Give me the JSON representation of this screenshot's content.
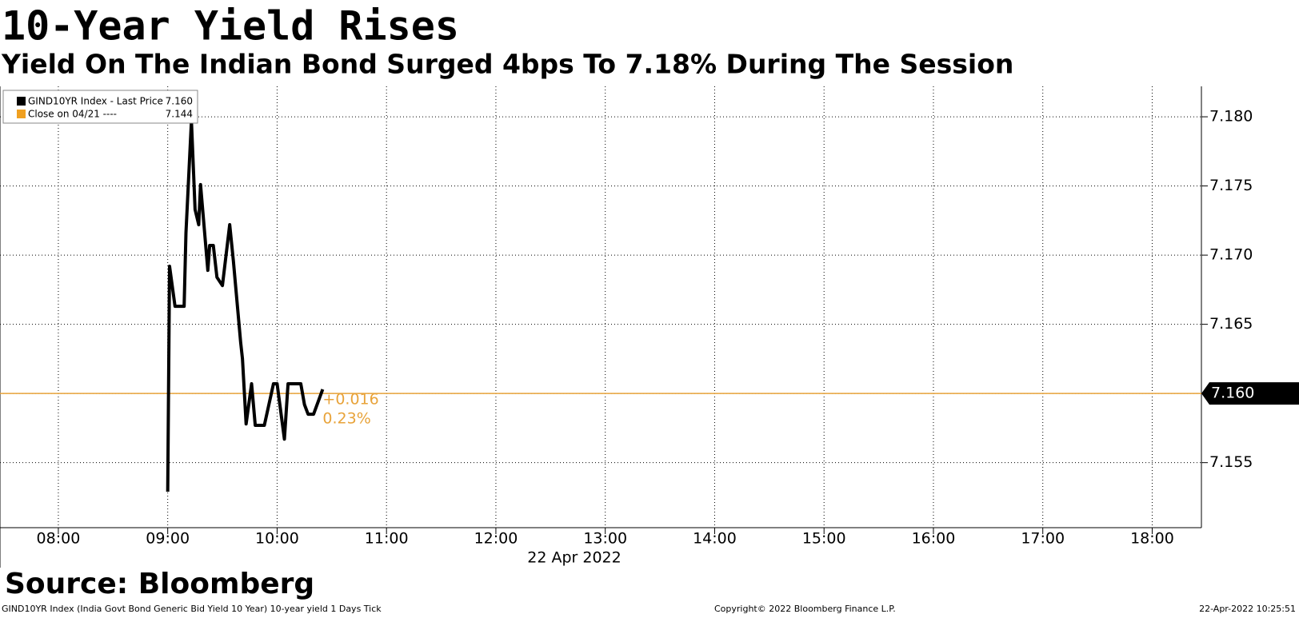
{
  "chart_data": {
    "type": "line",
    "title": "10-Year Yield Rises",
    "subtitle": "Yield On The Indian Bond Surged 4bps To 7.18% During The Session",
    "x": [
      "09:00",
      "09:01",
      "09:04",
      "09:09",
      "09:10",
      "09:13",
      "09:15",
      "09:17",
      "09:18",
      "09:22",
      "09:23",
      "09:25",
      "09:27",
      "09:30",
      "09:34",
      "09:36",
      "09:40",
      "09:41",
      "09:43",
      "09:46",
      "09:48",
      "09:53",
      "09:55",
      "09:58",
      "10:00",
      "10:04",
      "10:06",
      "10:13",
      "10:15",
      "10:17",
      "10:20",
      "10:25"
    ],
    "series": [
      {
        "name": "GIND10YR Index - Last Price",
        "color": "#000000",
        "values": [
          7.1529,
          7.1692,
          7.1663,
          7.1663,
          7.1716,
          7.1797,
          7.1733,
          7.1722,
          7.1751,
          7.1689,
          7.1707,
          7.1707,
          7.1684,
          7.1678,
          7.1722,
          7.1696,
          7.1637,
          7.1625,
          7.1578,
          7.1607,
          7.1577,
          7.1577,
          7.1589,
          7.1607,
          7.1607,
          7.1567,
          7.1607,
          7.1607,
          7.1592,
          7.1585,
          7.1585,
          7.1603
        ]
      }
    ],
    "legend": [
      {
        "name": "GIND10YR Index - Last Price",
        "value": "7.160",
        "color": "#000000"
      },
      {
        "name": "Close on 04/21 ----",
        "value": "7.144",
        "color": "#f0a020"
      }
    ],
    "last_price": {
      "value": 7.16,
      "label": "7.160",
      "color": "#e8a33a"
    },
    "annotations": [
      "+0.016",
      "0.23%"
    ],
    "xlim": [
      "07:28",
      "18:27"
    ],
    "xticks": [
      "08:00",
      "09:00",
      "10:00",
      "11:00",
      "12:00",
      "13:00",
      "14:00",
      "15:00",
      "16:00",
      "17:00",
      "18:00"
    ],
    "date_label": "22 Apr 2022",
    "ylim": [
      7.1503,
      7.1822
    ],
    "yticks": [
      {
        "value": 7.155,
        "label": "7.155"
      },
      {
        "value": 7.16,
        "label": "7.160"
      },
      {
        "value": 7.165,
        "label": "7.165"
      },
      {
        "value": 7.17,
        "label": "7.170"
      },
      {
        "value": 7.175,
        "label": "7.175"
      },
      {
        "value": 7.18,
        "label": "7.180"
      }
    ],
    "grid": true,
    "source": "Source: Bloomberg",
    "footer": [
      "GIND10YR Index (India Govt Bond Generic Bid Yield 10 Year) 10-year yield 1 Days  Tick",
      "Copyright© 2022 Bloomberg Finance L.P.",
      "22-Apr-2022 10:25:51"
    ]
  }
}
